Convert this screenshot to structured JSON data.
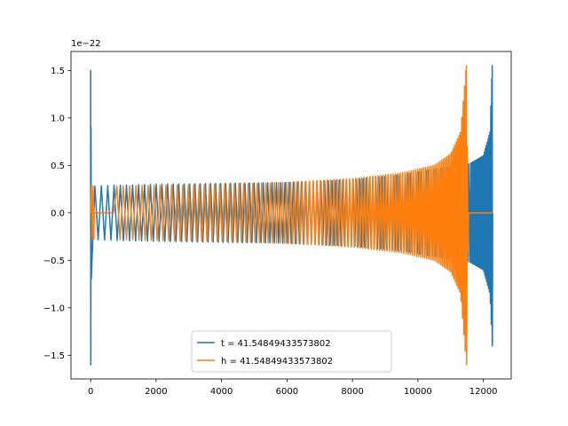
{
  "chart_data": {
    "type": "line",
    "title": "",
    "xlabel": "",
    "ylabel": "",
    "xlim": [
      -600,
      12850
    ],
    "ylim": [
      -1.75,
      1.7
    ],
    "y_offset_text": "1e−22",
    "x_ticks": [
      0,
      2000,
      4000,
      6000,
      8000,
      10000,
      12000
    ],
    "x_tick_labels": [
      "0",
      "2000",
      "4000",
      "6000",
      "8000",
      "10000",
      "12000"
    ],
    "y_ticks": [
      -1.5,
      -1.0,
      -0.5,
      0.0,
      0.5,
      1.0,
      1.5
    ],
    "y_tick_labels": [
      "−1.5",
      "−1.0",
      "−0.5",
      "0.0",
      "0.5",
      "1.0",
      "1.5"
    ],
    "grid": false,
    "legend_position": "bottom-center",
    "series": [
      {
        "name": "t = 41.54849433573802",
        "color": "#1f77b4",
        "x": [
          0,
          30,
          700,
          2000,
          4000,
          6000,
          8000,
          9500,
          10500,
          11200,
          11600,
          12000,
          12200,
          12270,
          12300
        ],
        "upper": [
          1.5,
          0.28,
          0.29,
          0.3,
          0.31,
          0.32,
          0.35,
          0.4,
          0.46,
          0.5,
          0.52,
          0.6,
          0.85,
          1.55,
          0.0
        ],
        "lower": [
          -1.6,
          -0.28,
          -0.29,
          -0.3,
          -0.31,
          -0.32,
          -0.35,
          -0.4,
          -0.46,
          -0.5,
          -0.52,
          -0.6,
          -0.85,
          -1.4,
          0.0
        ]
      },
      {
        "name": "h = 41.54849433573802",
        "color": "#ff7f0e",
        "x": [
          0,
          700,
          2000,
          4000,
          6000,
          8000,
          9500,
          10500,
          11000,
          11300,
          11480,
          11550,
          12300
        ],
        "upper": [
          0.28,
          0.28,
          0.29,
          0.3,
          0.32,
          0.36,
          0.42,
          0.5,
          0.62,
          0.85,
          1.55,
          0.0,
          0.0
        ],
        "lower": [
          -0.28,
          -0.28,
          -0.29,
          -0.3,
          -0.32,
          -0.36,
          -0.42,
          -0.5,
          -0.62,
          -0.85,
          -1.6,
          0.0,
          0.0
        ]
      }
    ]
  }
}
